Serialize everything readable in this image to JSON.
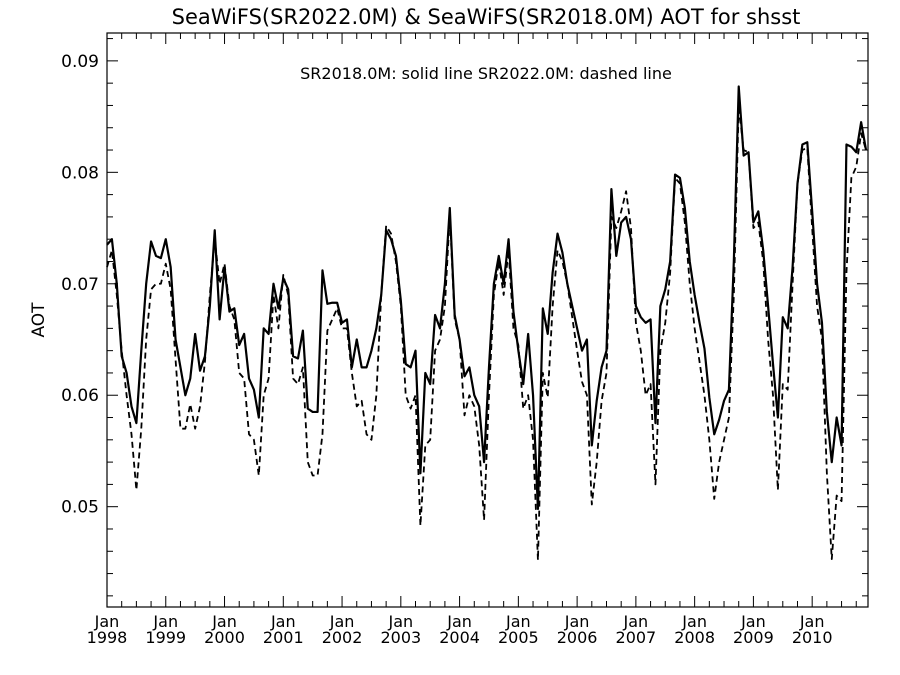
{
  "chart_data": {
    "type": "line",
    "title": "SeaWiFS(SR2022.0M) & SeaWiFS(SR2018.0M)  AOT for shsst",
    "ylabel": "AOT",
    "xlabel": "",
    "annotation": "SR2018.0M: solid line   SR2022.0M: dashed line",
    "xlim": [
      1998.0,
      2010.95
    ],
    "ylim": [
      0.041,
      0.0925
    ],
    "yticks": [
      0.05,
      0.06,
      0.07,
      0.08,
      0.09
    ],
    "ytick_labels": [
      "0.05",
      "0.06",
      "0.07",
      "0.08",
      "0.09"
    ],
    "xticks": [
      1998,
      1999,
      2000,
      2001,
      2002,
      2003,
      2004,
      2005,
      2006,
      2007,
      2008,
      2009,
      2010
    ],
    "xtick_month_label": "Jan",
    "xtick_year_labels": [
      "1998",
      "1999",
      "2000",
      "2001",
      "2002",
      "2003",
      "2004",
      "2005",
      "2006",
      "2007",
      "2008",
      "2009",
      "2010"
    ],
    "x_start_year": 1998,
    "grid": false,
    "series": [
      {
        "name": "SR2018.0M",
        "style": "solid",
        "color": "#000000",
        "values": [
          0.0735,
          0.074,
          0.07,
          0.0635,
          0.062,
          0.059,
          0.0575,
          0.064,
          0.07,
          0.0738,
          0.0725,
          0.0723,
          0.074,
          0.0715,
          0.065,
          0.0625,
          0.06,
          0.0615,
          0.0655,
          0.0622,
          0.0635,
          0.068,
          0.0748,
          0.0668,
          0.0715,
          0.0675,
          0.0678,
          0.0645,
          0.0655,
          0.0615,
          0.0605,
          0.058,
          0.066,
          0.0655,
          0.07,
          0.0678,
          0.0705,
          0.0695,
          0.0635,
          0.0633,
          0.0658,
          0.0588,
          0.0585,
          0.0585,
          0.0712,
          0.0682,
          0.0683,
          0.0683,
          0.0665,
          0.0668,
          0.0625,
          0.065,
          0.0625,
          0.0625,
          0.064,
          0.066,
          0.069,
          0.0748,
          0.074,
          0.0725,
          0.0685,
          0.0628,
          0.0625,
          0.064,
          0.053,
          0.062,
          0.061,
          0.0672,
          0.066,
          0.07,
          0.0768,
          0.0672,
          0.065,
          0.0617,
          0.0625,
          0.06,
          0.059,
          0.054,
          0.0625,
          0.07,
          0.0725,
          0.07,
          0.074,
          0.0675,
          0.064,
          0.061,
          0.0655,
          0.06,
          0.0498,
          0.0678,
          0.0655,
          0.071,
          0.0745,
          0.0728,
          0.07,
          0.068,
          0.066,
          0.064,
          0.065,
          0.0555,
          0.0595,
          0.0625,
          0.064,
          0.0785,
          0.0725,
          0.0755,
          0.076,
          0.074,
          0.068,
          0.067,
          0.0665,
          0.0668,
          0.0575,
          0.068,
          0.0695,
          0.072,
          0.0798,
          0.0795,
          0.0768,
          0.072,
          0.069,
          0.0665,
          0.0642,
          0.0598,
          0.0565,
          0.0578,
          0.0595,
          0.0605,
          0.072,
          0.0877,
          0.0815,
          0.0818,
          0.0755,
          0.0765,
          0.073,
          0.068,
          0.0628,
          0.058,
          0.067,
          0.066,
          0.0715,
          0.079,
          0.0825,
          0.0827,
          0.0765,
          0.07,
          0.0665,
          0.0585,
          0.054,
          0.058,
          0.0555,
          0.0825,
          0.0823,
          0.0818,
          0.0845,
          0.082
        ]
      },
      {
        "name": "SR2022.0M",
        "style": "dashed",
        "color": "#000000",
        "values": [
          0.0715,
          0.073,
          0.069,
          0.064,
          0.06,
          0.0565,
          0.0515,
          0.057,
          0.065,
          0.0695,
          0.07,
          0.07,
          0.0718,
          0.0695,
          0.0632,
          0.057,
          0.057,
          0.0592,
          0.057,
          0.059,
          0.063,
          0.069,
          0.074,
          0.07,
          0.0718,
          0.068,
          0.0668,
          0.062,
          0.0615,
          0.0565,
          0.056,
          0.0528,
          0.06,
          0.0615,
          0.069,
          0.066,
          0.0708,
          0.069,
          0.0615,
          0.061,
          0.0625,
          0.054,
          0.0528,
          0.0528,
          0.0565,
          0.0658,
          0.0668,
          0.0678,
          0.066,
          0.066,
          0.062,
          0.059,
          0.0595,
          0.0565,
          0.056,
          0.06,
          0.069,
          0.0752,
          0.0745,
          0.072,
          0.068,
          0.06,
          0.0588,
          0.06,
          0.0483,
          0.0555,
          0.056,
          0.064,
          0.065,
          0.068,
          0.0762,
          0.0668,
          0.065,
          0.0582,
          0.06,
          0.059,
          0.0555,
          0.0488,
          0.06,
          0.069,
          0.072,
          0.069,
          0.073,
          0.066,
          0.0645,
          0.0588,
          0.06,
          0.056,
          0.0452,
          0.062,
          0.0598,
          0.068,
          0.073,
          0.072,
          0.07,
          0.067,
          0.064,
          0.0612,
          0.06,
          0.0502,
          0.054,
          0.0595,
          0.062,
          0.076,
          0.075,
          0.0765,
          0.0783,
          0.075,
          0.0665,
          0.064,
          0.06,
          0.061,
          0.052,
          0.064,
          0.0665,
          0.071,
          0.0795,
          0.079,
          0.0755,
          0.07,
          0.066,
          0.063,
          0.06,
          0.056,
          0.0507,
          0.054,
          0.056,
          0.058,
          0.069,
          0.086,
          0.082,
          0.0818,
          0.075,
          0.0755,
          0.072,
          0.065,
          0.06,
          0.0515,
          0.061,
          0.0605,
          0.07,
          0.079,
          0.082,
          0.0822,
          0.075,
          0.068,
          0.065,
          0.053,
          0.0453,
          0.051,
          0.0505,
          0.071,
          0.0795,
          0.0805,
          0.0835,
          0.082
        ]
      }
    ]
  }
}
